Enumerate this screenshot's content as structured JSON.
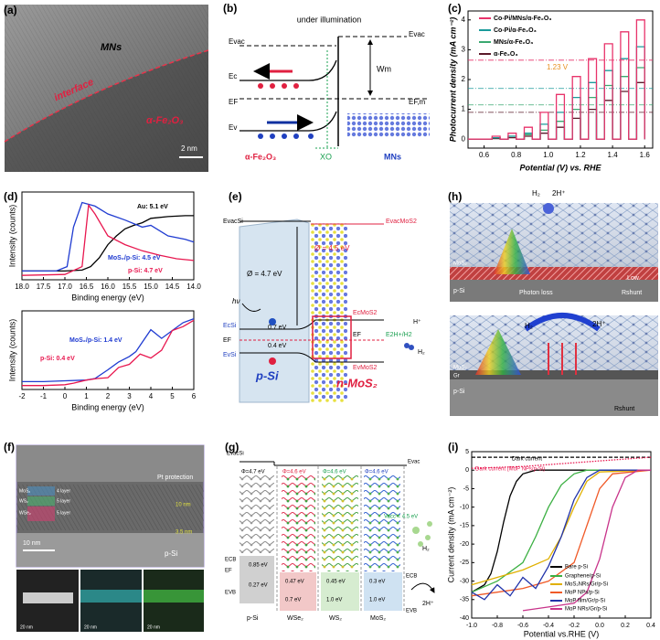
{
  "a": {
    "label": "(a)",
    "texts": [
      "MNs",
      "interface",
      "α-Fe₂O₃",
      "2 nm"
    ]
  },
  "b": {
    "label": "(b)",
    "texts": [
      "under illumination",
      "Evac",
      "Evac",
      "Ec",
      "EF",
      "Ev",
      "Wm",
      "EF,m",
      "α-Fe₂O₃",
      "XO",
      "MNs"
    ]
  },
  "c": {
    "label": "(c)",
    "chart": {
      "type": "line",
      "x": [
        0.5,
        0.65,
        0.65,
        0.7,
        0.7,
        0.75,
        0.75,
        0.8,
        0.8,
        0.85,
        0.85,
        0.9,
        0.9,
        0.95,
        0.95,
        1,
        1,
        1.05,
        1.05,
        1.1,
        1.1,
        1.15,
        1.15,
        1.2,
        1.2,
        1.25,
        1.25,
        1.3,
        1.3,
        1.35,
        1.35,
        1.4,
        1.4,
        1.45,
        1.45,
        1.5,
        1.5,
        1.55,
        1.55,
        1.6,
        1.6
      ],
      "xlim": [
        0.5,
        1.65
      ],
      "ylim": [
        -0.3,
        4.3
      ],
      "xticks": [
        0.6,
        0.8,
        {
          "value": 1,
          "label": "1.0"
        },
        1.2,
        1.4,
        1.6
      ],
      "yticks": [
        0,
        1,
        2,
        3,
        4
      ],
      "xlabel": "Potential (V) vs. RHE",
      "ylabel": "Photocurrent density (mA cm⁻²)",
      "annotation": "1.23 V",
      "series": [
        {
          "name": "Co-Pi/MNs/α-Fe₂O₃",
          "color": "#e8336b",
          "ref": 2.65,
          "values": [
            0,
            0,
            0.1,
            0.1,
            0,
            0,
            0.2,
            0.2,
            0,
            0,
            0.4,
            0.4,
            0,
            0,
            0.9,
            0.9,
            0,
            0,
            1.5,
            1.5,
            0,
            0,
            2.1,
            2.1,
            0,
            0,
            2.7,
            2.7,
            0,
            0,
            3.2,
            3.2,
            0,
            0,
            3.6,
            3.6,
            0,
            0,
            4,
            4,
            0
          ]
        },
        {
          "name": "Co-Pi/α-Fe₂O₃",
          "color": "#1a9b9b",
          "ref": 1.7,
          "values": [
            0,
            0,
            0.05,
            0.05,
            0,
            0,
            0.1,
            0.1,
            0,
            0,
            0.2,
            0.2,
            0,
            0,
            0.5,
            0.5,
            0,
            0,
            0.9,
            0.9,
            0,
            0,
            1.4,
            1.4,
            0,
            0,
            1.9,
            1.9,
            0,
            0,
            2.3,
            2.3,
            0,
            0,
            2.7,
            2.7,
            0,
            0,
            3.1,
            3.1,
            0
          ]
        },
        {
          "name": "MNs/α-Fe₂O₃",
          "color": "#3aa870",
          "ref": 1.15,
          "values": [
            0,
            0,
            0.05,
            0.05,
            0,
            0,
            0.1,
            0.1,
            0,
            0,
            0.15,
            0.15,
            0,
            0,
            0.3,
            0.3,
            0,
            0,
            0.6,
            0.6,
            0,
            0,
            1,
            1,
            0,
            0,
            1.4,
            1.4,
            0,
            0,
            1.8,
            1.8,
            0,
            0,
            2.1,
            2.1,
            0,
            0,
            2.4,
            2.4,
            0
          ]
        },
        {
          "name": "α-Fe₂O₃",
          "color": "#5a1a2a",
          "ref": 0.9,
          "values": [
            0,
            0,
            0.02,
            0.02,
            0,
            0,
            0.05,
            0.05,
            0,
            0,
            0.1,
            0.1,
            0,
            0,
            0.2,
            0.2,
            0,
            0,
            0.4,
            0.4,
            0,
            0,
            0.7,
            0.7,
            0,
            0,
            1,
            1,
            0,
            0,
            1.3,
            1.3,
            0,
            0,
            1.6,
            1.6,
            0,
            0,
            1.9,
            1.9,
            0
          ]
        }
      ]
    }
  },
  "d": {
    "label": "(d)",
    "charts": [
      {
        "type": "line",
        "xlim": [
          18,
          14
        ],
        "ylim": [
          0,
          10
        ],
        "xticks": [
          {
            "value": 18,
            "label": "18.0"
          },
          17.5,
          {
            "value": 17,
            "label": "17.0"
          },
          16.5,
          {
            "value": 16,
            "label": "16.0"
          },
          15.5,
          {
            "value": 15,
            "label": "15.0"
          },
          14.5,
          {
            "value": 14,
            "label": "14.0"
          }
        ],
        "xlabel": "Binding energy (eV)",
        "ylabel": "Intensity (counts)",
        "series": [
          {
            "name": "Au: 5.1 eV",
            "color": "#000000",
            "x": [
              18,
              17,
              16.6,
              16.4,
              16.2,
              16,
              15.8,
              15.6,
              15.4,
              15.2,
              15,
              14.6,
              14.2,
              14
            ],
            "values": [
              1,
              1,
              1.1,
              1.5,
              2.5,
              4,
              5,
              5.8,
              6.2,
              6.5,
              7,
              7.2,
              7.3,
              7.3
            ]
          },
          {
            "name": "MoS₂/p-Si: 4.5 eV",
            "color": "#1f3bd1",
            "x": [
              18,
              17.2,
              16.95,
              16.8,
              16.6,
              16.3,
              16,
              15.6,
              15.2,
              15,
              14.6,
              14.2,
              14
            ],
            "values": [
              1,
              1,
              1.5,
              6,
              8.8,
              8.4,
              7.5,
              6.8,
              6,
              6.2,
              5,
              4.6,
              4.3
            ]
          },
          {
            "name": "p-Si: 4.7 eV",
            "color": "#e8174f",
            "x": [
              18,
              17,
              16.6,
              16.45,
              16.3,
              16,
              15.6,
              15.2,
              14.8,
              14.4,
              14
            ],
            "values": [
              0.5,
              0.6,
              1.5,
              8.5,
              7.5,
              5,
              4,
              3.3,
              2.8,
              2.4,
              2.2
            ]
          }
        ]
      },
      {
        "type": "line",
        "xlim": [
          -2,
          6
        ],
        "ylim": [
          0,
          10
        ],
        "xticks": [
          -2,
          -1,
          0,
          1,
          2,
          3,
          4,
          5,
          6
        ],
        "xlabel": "Binding energy (eV)",
        "ylabel": "Intensity (counts)",
        "series": [
          {
            "name": "MoS₂/p-Si: 1.4 eV",
            "color": "#1f3bd1",
            "x": [
              -2,
              -1,
              0,
              1,
              1.4,
              2,
              2.5,
              3,
              3.3,
              3.6,
              4,
              4.5,
              5,
              5.5,
              6
            ],
            "values": [
              1,
              1,
              1.1,
              1.2,
              1.4,
              2.5,
              3.5,
              4.2,
              4.8,
              6,
              7.6,
              6.5,
              7.5,
              8.5,
              9
            ]
          },
          {
            "name": "p-Si: 0.4 eV",
            "color": "#e8174f",
            "x": [
              -2,
              -1,
              0,
              0.4,
              1,
              1.5,
              2,
              2.5,
              3,
              3.5,
              4,
              4.5,
              5,
              5.5,
              6
            ],
            "values": [
              0.5,
              0.5,
              0.6,
              0.8,
              1.2,
              1.4,
              1.5,
              2.8,
              3.2,
              4.5,
              4,
              5,
              7.5,
              8,
              8.8
            ]
          }
        ]
      }
    ]
  },
  "e": {
    "label": "(e)",
    "texts": [
      "EvacSi",
      "EvacMoS2",
      "Ø = 4.7 eV",
      "Ø = 4.5 eV",
      "hν",
      "EcSi",
      "EF",
      "EvSi",
      "0.7 eV",
      "0.4 eV",
      "EcMoS2",
      "EF",
      "E2H+/H2",
      "EvMoS2",
      "H⁺",
      "H₂",
      "p-Si",
      "n-MoS₂"
    ]
  },
  "f": {
    "label": "(f)",
    "texts": [
      "Pt protection",
      "MoS₂",
      "WS₂",
      "WSe₂",
      "4 layer",
      "5 layer",
      "5 layer",
      "10 nm",
      "3.5 nm",
      "10 nm",
      "p-Si",
      "20 nm",
      "20 nm",
      "20 nm"
    ]
  },
  "g": {
    "label": "(g)",
    "texts": [
      "EvacSi",
      "Φ=4.7 eV",
      "Φ=4.6 eV",
      "Φ=4.6 eV",
      "Φ=4.6 eV",
      "Evac",
      "Vacc = 4.5 eV",
      "ECB",
      "EF",
      "EVB",
      "0.85 eV",
      "0.27 eV",
      "0.47 eV",
      "0.7 eV",
      "0.45 eV",
      "1.0 eV",
      "0.3 eV",
      "1.0 eV",
      "ECB",
      "EVB",
      "p-Si",
      "WSe₂",
      "WS₂",
      "MoS₂",
      "H₂",
      "2H⁺"
    ]
  },
  "h": {
    "label": "(h)",
    "texts": [
      "H₂",
      "2H⁺",
      "MoS₂",
      "p-Si",
      "Photon loss",
      "Low",
      "Rshunt",
      "H₂",
      "2H⁺",
      "MoS₂",
      "Gr",
      "p-Si",
      "Rshunt"
    ]
  },
  "i": {
    "label": "(i)",
    "chart": {
      "type": "line",
      "xlim": [
        -1,
        0.4
      ],
      "ylim": [
        -40,
        5
      ],
      "xticks": [
        {
          "value": -1,
          "label": "-1.0"
        },
        -0.8,
        -0.6,
        -0.4,
        -0.2,
        {
          "value": 0,
          "label": "0.0"
        },
        0.2,
        0.4
      ],
      "yticks": [
        5,
        0,
        -5,
        -10,
        -15,
        -20,
        -25,
        -30,
        -35,
        -40
      ],
      "xlabel": "Potential vs.RHE (V)",
      "ylabel": "Current density (mA cm⁻²)",
      "series": [
        {
          "name": "Bare p-Si",
          "color": "#000000",
          "x": [
            -1,
            -0.9,
            -0.85,
            -0.8,
            -0.75,
            -0.7,
            -0.65,
            -0.6,
            -0.5,
            0.4
          ],
          "values": [
            -33,
            -31,
            -28,
            -22,
            -14,
            -7,
            -3,
            -1,
            0,
            0
          ]
        },
        {
          "name": "Graphene/p-Si",
          "color": "#3cb043",
          "x": [
            -1,
            -0.8,
            -0.6,
            -0.5,
            -0.4,
            -0.3,
            -0.2,
            -0.1,
            0.4
          ],
          "values": [
            -33,
            -30,
            -25,
            -18,
            -10,
            -4,
            -1,
            0,
            0
          ]
        },
        {
          "name": "MoS₂NRs/Gr/p-Si",
          "color": "#e0b000",
          "x": [
            -1,
            -0.8,
            -0.6,
            -0.4,
            -0.3,
            -0.2,
            -0.1,
            0,
            0.4
          ],
          "values": [
            -31,
            -29,
            -27,
            -24,
            -18,
            -10,
            -3,
            -0.5,
            0
          ]
        },
        {
          "name": "MoP NPs/p-Si",
          "color": "#f05a28",
          "x": [
            -1,
            -0.8,
            -0.6,
            -0.4,
            -0.2,
            -0.1,
            0,
            0.1,
            0.4
          ],
          "values": [
            -34,
            -33,
            -32,
            -30,
            -25,
            -15,
            -5,
            -1,
            0
          ]
        },
        {
          "name": "MoP film/Gr/p-Si",
          "color": "#2233aa",
          "x": [
            -1,
            -0.9,
            -0.8,
            -0.7,
            -0.6,
            -0.5,
            -0.4,
            -0.3,
            -0.2,
            -0.1,
            0,
            0.4
          ],
          "values": [
            -33,
            -35,
            -31,
            -34,
            -29,
            -32,
            -26,
            -18,
            -8,
            -2,
            0,
            0
          ]
        },
        {
          "name": "MoP NRs/Gr/p-Si",
          "color": "#c8338a",
          "x": [
            -0.6,
            -0.4,
            -0.2,
            -0.1,
            0,
            0.1,
            0.2,
            0.3,
            0.4
          ],
          "values": [
            -38,
            -37,
            -36,
            -33,
            -24,
            -10,
            -2,
            0,
            0
          ]
        },
        {
          "name": "Dark current",
          "color": "#000000",
          "line": "dashed",
          "x": [
            -1,
            0.4
          ],
          "values": [
            3.5,
            3.5
          ]
        },
        {
          "name": "Dark current (MoP NPs/p-Si)",
          "color": "#e8174f",
          "line": "dotted",
          "x": [
            -1,
            -0.6,
            0,
            0.4
          ],
          "values": [
            0.5,
            1,
            2.5,
            3.5
          ]
        }
      ]
    }
  }
}
